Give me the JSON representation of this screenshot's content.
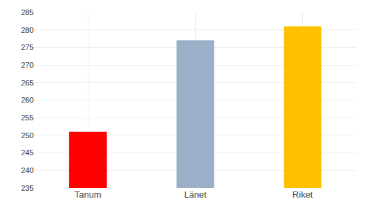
{
  "chart_data": {
    "type": "bar",
    "categories": [
      "Tanum",
      "Länet",
      "Riket"
    ],
    "values": [
      251,
      277,
      281
    ],
    "colors": [
      "#ff0000",
      "#9ab0c8",
      "#ffc000"
    ],
    "ylim": [
      235,
      285
    ],
    "yticks": [
      235,
      240,
      245,
      250,
      255,
      260,
      265,
      270,
      275,
      280,
      285
    ],
    "grid": true
  }
}
